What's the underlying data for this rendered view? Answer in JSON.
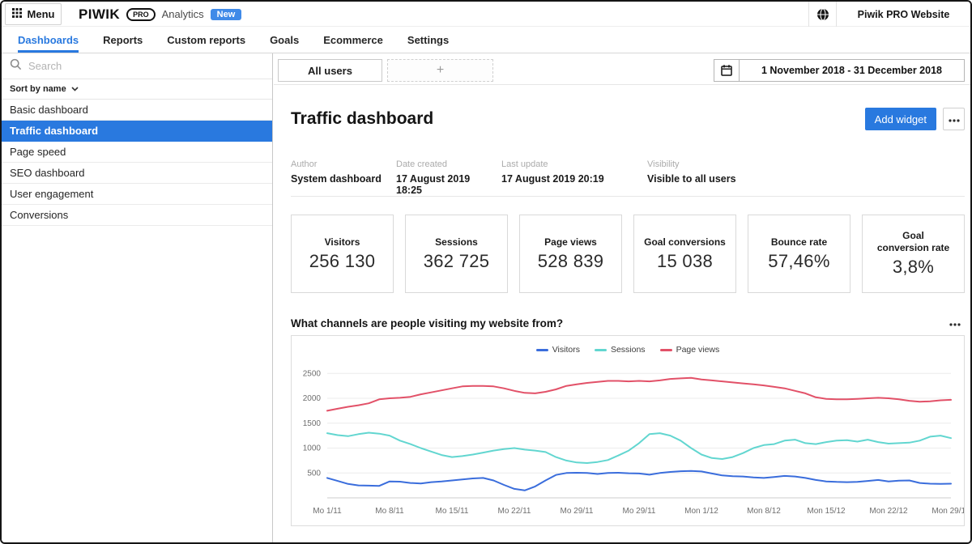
{
  "colors": {
    "accent": "#2979df",
    "badge": "#3f8ae8"
  },
  "top_bar": {
    "menu_label": "Menu",
    "logo_primary": "PIWIK",
    "logo_pro": "PRO",
    "logo_product": "Analytics",
    "new_badge": "New",
    "website_name": "Piwik PRO Website"
  },
  "nav": {
    "tabs": [
      {
        "label": "Dashboards",
        "active": true
      },
      {
        "label": "Reports",
        "active": false
      },
      {
        "label": "Custom reports",
        "active": false
      },
      {
        "label": "Goals",
        "active": false
      },
      {
        "label": "Ecommerce",
        "active": false
      },
      {
        "label": "Settings",
        "active": false
      }
    ]
  },
  "sidebar": {
    "search_placeholder": "Search",
    "sort_label": "Sort by name",
    "items": [
      {
        "label": "Basic dashboard",
        "selected": false
      },
      {
        "label": "Traffic dashboard",
        "selected": true
      },
      {
        "label": "Page speed",
        "selected": false
      },
      {
        "label": "SEO dashboard",
        "selected": false
      },
      {
        "label": "User engagement",
        "selected": false
      },
      {
        "label": "Conversions",
        "selected": false
      }
    ]
  },
  "toolbar": {
    "segment_tab": "All users",
    "add_segment_label": "+",
    "date_range": "1 November 2018 - 31 December 2018"
  },
  "header": {
    "title": "Traffic dashboard",
    "add_widget_label": "Add widget"
  },
  "meta": {
    "fields": [
      {
        "label": "Author",
        "value": "System dashboard"
      },
      {
        "label": "Date created",
        "value": "17 August 2019 18:25"
      },
      {
        "label": "Last update",
        "value": "17 August 2019 20:19"
      },
      {
        "label": "Visibility",
        "value": "Visible to all users"
      }
    ]
  },
  "kpis": [
    {
      "label": "Visitors",
      "value": "256 130"
    },
    {
      "label": "Sessions",
      "value": "362 725"
    },
    {
      "label": "Page views",
      "value": "528 839"
    },
    {
      "label": "Goal conversions",
      "value": "15 038"
    },
    {
      "label": "Bounce rate",
      "value": "57,46%"
    },
    {
      "label": "Goal conversion rate",
      "value": "3,8%"
    }
  ],
  "chart_data": {
    "type": "line",
    "title": "What channels are people visiting my website from?",
    "xlabel": "",
    "ylabel": "",
    "ylim": [
      0,
      2700
    ],
    "yticks": [
      500,
      1000,
      1500,
      2000,
      2500
    ],
    "grid": true,
    "legend_position": "top",
    "x_tick_labels": [
      "Mo 1/11",
      "Mo 8/11",
      "Mo 15/11",
      "Mo 22/11",
      "Mo 29/11",
      "Mo 29/11",
      "Mon 1/12",
      "Mon 8/12",
      "Mon 15/12",
      "Mon 22/12",
      "Mon 29/12"
    ],
    "tick_indices": [
      0,
      6,
      12,
      18,
      24,
      30,
      36,
      42,
      48,
      54,
      60
    ],
    "series": [
      {
        "name": "Visitors",
        "color": "#3a6ddc",
        "values": [
          400,
          340,
          280,
          250,
          245,
          240,
          330,
          325,
          300,
          290,
          315,
          330,
          350,
          370,
          390,
          400,
          350,
          260,
          180,
          150,
          230,
          350,
          460,
          500,
          505,
          500,
          480,
          500,
          505,
          495,
          490,
          465,
          500,
          520,
          535,
          540,
          530,
          490,
          450,
          435,
          430,
          410,
          400,
          420,
          440,
          430,
          400,
          360,
          330,
          320,
          315,
          320,
          340,
          360,
          330,
          345,
          350,
          300,
          285,
          280,
          285
        ]
      },
      {
        "name": "Sessions",
        "color": "#62d6d0",
        "values": [
          1300,
          1260,
          1240,
          1280,
          1310,
          1290,
          1250,
          1150,
          1080,
          1000,
          930,
          860,
          820,
          840,
          870,
          910,
          950,
          980,
          1000,
          970,
          950,
          920,
          820,
          750,
          710,
          700,
          720,
          760,
          850,
          950,
          1100,
          1280,
          1300,
          1250,
          1150,
          1000,
          870,
          800,
          780,
          820,
          900,
          1000,
          1060,
          1080,
          1150,
          1170,
          1100,
          1080,
          1120,
          1150,
          1160,
          1130,
          1170,
          1120,
          1090,
          1100,
          1110,
          1150,
          1230,
          1250,
          1200
        ]
      },
      {
        "name": "Page views",
        "color": "#e25168",
        "values": [
          1750,
          1790,
          1830,
          1860,
          1900,
          1980,
          2000,
          2010,
          2030,
          2080,
          2120,
          2160,
          2200,
          2240,
          2250,
          2250,
          2240,
          2200,
          2150,
          2110,
          2100,
          2130,
          2180,
          2250,
          2280,
          2310,
          2330,
          2350,
          2350,
          2340,
          2350,
          2340,
          2360,
          2390,
          2400,
          2410,
          2380,
          2360,
          2340,
          2320,
          2300,
          2280,
          2260,
          2230,
          2200,
          2150,
          2100,
          2020,
          1990,
          1980,
          1980,
          1990,
          2000,
          2010,
          2000,
          1980,
          1950,
          1930,
          1940,
          1960,
          1970
        ]
      }
    ]
  }
}
